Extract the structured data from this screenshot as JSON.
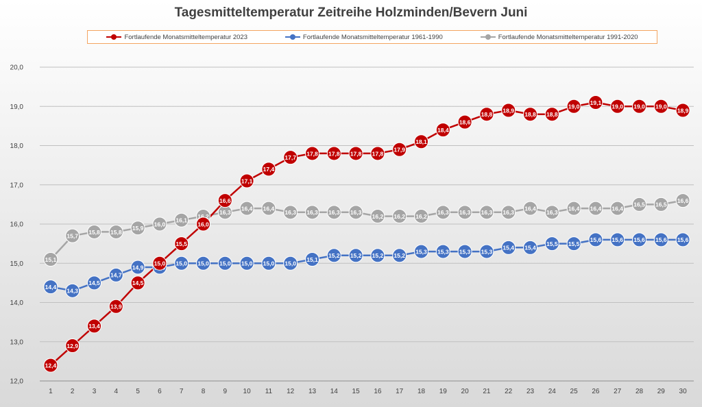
{
  "chart_data": {
    "type": "line",
    "title": "Tagesmitteltemperatur Zeitreihe Holzminden/Bevern Juni",
    "xlabel": "",
    "ylabel": "",
    "ylim": [
      12.0,
      20.0
    ],
    "yticks": [
      "12,0",
      "13,0",
      "14,0",
      "15,0",
      "16,0",
      "17,0",
      "18,0",
      "19,0",
      "20,0"
    ],
    "x": [
      1,
      2,
      3,
      4,
      5,
      6,
      7,
      8,
      9,
      10,
      11,
      12,
      13,
      14,
      15,
      16,
      17,
      18,
      19,
      20,
      21,
      22,
      23,
      24,
      25,
      26,
      27,
      28,
      29,
      30
    ],
    "legend_position": "top",
    "grid": true,
    "series": [
      {
        "name": "Fortlaufende Monatsmitteltemperatur 2023",
        "color": "#c00000",
        "values": [
          12.4,
          12.9,
          13.4,
          13.9,
          14.5,
          15.0,
          15.5,
          16.0,
          16.6,
          17.1,
          17.4,
          17.7,
          17.8,
          17.8,
          17.8,
          17.8,
          17.9,
          18.1,
          18.4,
          18.6,
          18.8,
          18.9,
          18.8,
          18.8,
          19.0,
          19.1,
          19.0,
          19.0,
          19.0,
          18.9
        ],
        "labels": [
          "12,4",
          "12,9",
          "13,4",
          "13,9",
          "14,5",
          "15,0",
          "15,5",
          "16,0",
          "16,6",
          "17,1",
          "17,4",
          "17,7",
          "17,8",
          "17,8",
          "17,8",
          "17,8",
          "17,9",
          "18,1",
          "18,4",
          "18,6",
          "18,8",
          "18,9",
          "18,8",
          "18,8",
          "19,0",
          "19,1",
          "19,0",
          "19,0",
          "19,0",
          "18,9"
        ]
      },
      {
        "name": "Fortlaufende Monatsmitteltemperatur 1961-1990",
        "color": "#4472c4",
        "values": [
          14.4,
          14.3,
          14.5,
          14.7,
          14.9,
          14.9,
          15.0,
          15.0,
          15.0,
          15.0,
          15.0,
          15.0,
          15.1,
          15.2,
          15.2,
          15.2,
          15.2,
          15.3,
          15.3,
          15.3,
          15.3,
          15.4,
          15.4,
          15.5,
          15.5,
          15.6,
          15.6,
          15.6,
          15.6,
          15.6
        ],
        "labels": [
          "14,4",
          "14,3",
          "14,5",
          "14,7",
          "14,9",
          "14,9",
          "15,0",
          "15,0",
          "15,0",
          "15,0",
          "15,0",
          "15,0",
          "15,1",
          "15,2",
          "15,2",
          "15,2",
          "15,2",
          "15,3",
          "15,3",
          "15,3",
          "15,3",
          "15,4",
          "15,4",
          "15,5",
          "15,5",
          "15,6",
          "15,6",
          "15,6",
          "15,6",
          "15,6"
        ]
      },
      {
        "name": "Fortlaufende Monatsmitteltemperatur 1991-2020",
        "color": "#a5a5a5",
        "values": [
          15.1,
          15.7,
          15.8,
          15.8,
          15.9,
          16.0,
          16.1,
          16.2,
          16.3,
          16.4,
          16.4,
          16.3,
          16.3,
          16.3,
          16.3,
          16.2,
          16.2,
          16.2,
          16.3,
          16.3,
          16.3,
          16.3,
          16.4,
          16.3,
          16.4,
          16.4,
          16.4,
          16.5,
          16.5,
          16.6
        ],
        "labels": [
          "15,1",
          "15,7",
          "15,8",
          "15,8",
          "15,9",
          "16,0",
          "16,1",
          "16,2",
          "16,3",
          "16,4",
          "16,4",
          "16,3",
          "16,3",
          "16,3",
          "16,3",
          "16,2",
          "16,2",
          "16,2",
          "16,3",
          "16,3",
          "16,3",
          "16,3",
          "16,4",
          "16,3",
          "16,4",
          "16,4",
          "16,4",
          "16,5",
          "16,5",
          "16,6"
        ]
      }
    ]
  }
}
